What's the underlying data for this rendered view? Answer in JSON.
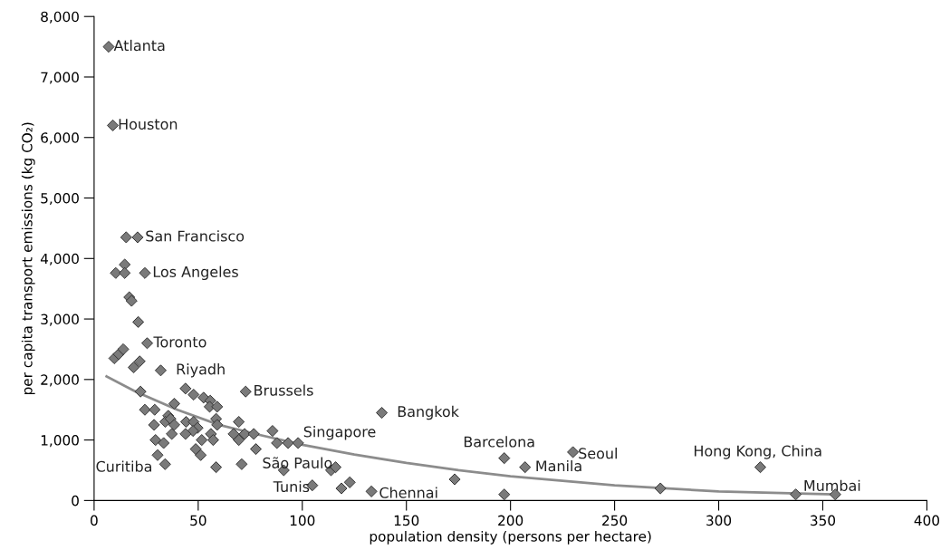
{
  "chart_data": {
    "type": "scatter",
    "xlabel": "population density (persons per hectare)",
    "ylabel": "per capita transport emissions (kg CO₂)",
    "xlim": [
      0,
      400
    ],
    "xticks": [
      0,
      50,
      100,
      150,
      200,
      250,
      300,
      350,
      400
    ],
    "ylim": [
      0,
      8000
    ],
    "yticks": [
      {
        "value": 0,
        "label": "0"
      },
      {
        "value": 1000,
        "label": "1,000"
      },
      {
        "value": 2000,
        "label": "2,000"
      },
      {
        "value": 3000,
        "label": "3,000"
      },
      {
        "value": 4000,
        "label": "4,000"
      },
      {
        "value": 5000,
        "label": "5,000"
      },
      {
        "value": 6000,
        "label": "6,000"
      },
      {
        "value": 7000,
        "label": "7,000"
      },
      {
        "value": 8000,
        "label": "8,000"
      }
    ],
    "grid": false,
    "legend": false,
    "series": [
      {
        "marker": "diamond",
        "color": "#7a7a7a",
        "x": [
          7,
          9,
          15.4,
          20.9,
          14.7,
          10.4,
          14.7,
          24.4,
          16.9,
          18.0,
          21.2,
          25.5,
          9.7,
          11.8,
          14.0,
          19.0,
          21.9,
          32.0,
          22.3,
          24.4,
          29.1,
          38.5,
          43.9,
          47.8,
          52.6,
          55.8,
          55.5,
          59.1,
          72.8,
          28.8,
          35.6,
          34.2,
          36.7,
          38.5,
          37.3,
          44.2,
          47.8,
          49.7,
          47.5,
          43.9,
          58.6,
          59.1,
          56.1,
          57.2,
          51.7,
          29.5,
          33.4,
          48.8,
          51.2,
          30.5,
          34.1,
          58.6,
          69.5,
          67.0,
          69.5,
          72.3,
          76.7,
          70.9,
          77.7,
          85.7,
          87.8,
          93.2,
          98.0,
          91.1,
          104.8,
          138.2,
          113.8,
          116.0,
          118.8,
          122.8,
          133.2,
          173.2,
          197,
          197,
          207,
          230,
          272,
          320,
          337,
          356
        ],
        "values": [
          7500,
          6200,
          4350,
          4350,
          3900,
          3760,
          3760,
          3760,
          3360,
          3300,
          2950,
          2600,
          2350,
          2420,
          2500,
          2200,
          2300,
          2150,
          1800,
          1500,
          1500,
          1600,
          1850,
          1750,
          1700,
          1650,
          1550,
          1550,
          1800,
          1250,
          1400,
          1300,
          1350,
          1250,
          1100,
          1300,
          1300,
          1200,
          1150,
          1100,
          1350,
          1250,
          1100,
          1000,
          1000,
          1000,
          950,
          850,
          750,
          750,
          600,
          550,
          1300,
          1100,
          1000,
          1100,
          1100,
          600,
          850,
          1150,
          950,
          950,
          950,
          500,
          250,
          1450,
          500,
          550,
          200,
          300,
          150,
          350,
          700,
          100,
          550,
          800,
          200,
          550,
          100,
          100
        ]
      },
      {
        "type": "line",
        "marker": "none",
        "color": "#8c8c8c",
        "x": [
          6,
          20,
          40,
          60,
          80,
          100,
          125,
          150,
          175,
          200,
          250,
          300,
          355
        ],
        "values": [
          2050,
          1800,
          1500,
          1250,
          1080,
          920,
          760,
          620,
          500,
          400,
          250,
          150,
          100
        ]
      }
    ],
    "annotations": [
      {
        "text": "Atlanta",
        "x": 7,
        "y": 7500
      },
      {
        "text": "Houston",
        "x": 9,
        "y": 6200
      },
      {
        "text": "San Francisco",
        "x": 20.9,
        "y": 4350
      },
      {
        "text": "Los Angeles",
        "x": 24.4,
        "y": 3760
      },
      {
        "text": "Toronto",
        "x": 25.5,
        "y": 2600
      },
      {
        "text": "Riyadh",
        "x": 32.0,
        "y": 2150
      },
      {
        "text": "Brussels",
        "x": 72.8,
        "y": 1800
      },
      {
        "text": "Bangkok",
        "x": 138.2,
        "y": 1450
      },
      {
        "text": "Singapore",
        "x": 98.0,
        "y": 950
      },
      {
        "text": "Curitiba",
        "x": 30.5,
        "y": 750
      },
      {
        "text": "São Paulo",
        "x": 77.7,
        "y": 850
      },
      {
        "text": "Tunis",
        "x": 104.8,
        "y": 250
      },
      {
        "text": "Chennai",
        "x": 133.2,
        "y": 150
      },
      {
        "text": "Barcelona",
        "x": 197,
        "y": 700
      },
      {
        "text": "Manila",
        "x": 207,
        "y": 550
      },
      {
        "text": "Seoul",
        "x": 230,
        "y": 800
      },
      {
        "text": "Hong Kong, China",
        "x": 320,
        "y": 550
      },
      {
        "text": "Mumbai",
        "x": 337,
        "y": 100
      }
    ]
  }
}
